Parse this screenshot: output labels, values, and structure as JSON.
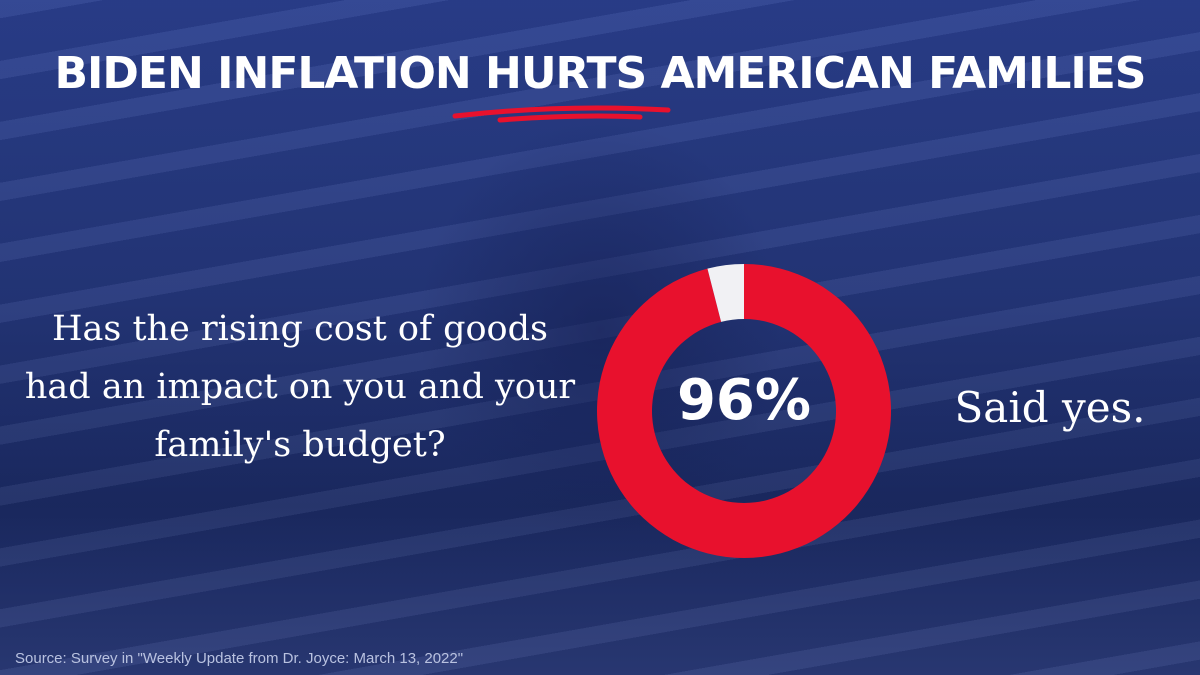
{
  "chart_data": {
    "type": "donut",
    "title": "BIDEN INFLATION HURTS AMERICAN FAMILIES",
    "question": "Has the rising cost of goods had an impact on you and your family's budget?",
    "values": [
      96,
      4
    ],
    "value_labels": [
      "96%",
      null
    ],
    "colors": [
      "#e8112d",
      "#f1f1f4"
    ],
    "annotation": "Said yes.",
    "source": "Source: Survey in \"Weekly Update from Dr. Joyce: March 13, 2022\""
  }
}
